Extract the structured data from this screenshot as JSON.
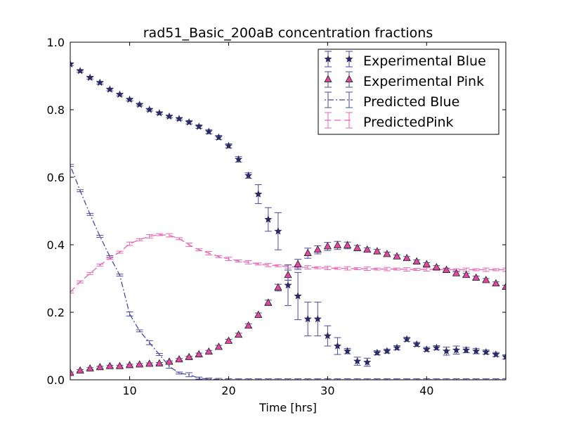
{
  "colors": {
    "blue": "#2b2a63",
    "blue_err": "#4b4aa3",
    "pink": "#e0479e",
    "pink_line": "#e866b4"
  },
  "chart_data": {
    "type": "line",
    "title": "rad51_Basic_200aB concentration fractions",
    "xlabel": "Time [hrs]",
    "ylabel": "",
    "xlim": [
      4,
      48
    ],
    "ylim": [
      0,
      1.0
    ],
    "xticks": [
      10,
      20,
      30,
      40
    ],
    "yticks": [
      0.0,
      0.2,
      0.4,
      0.6,
      0.8,
      1.0
    ],
    "xtick_labels": [
      "10",
      "20",
      "30",
      "40"
    ],
    "ytick_labels": [
      "0.0",
      "0.2",
      "0.4",
      "0.6",
      "0.8",
      "1.0"
    ],
    "grid": false,
    "legend_position": "top-right",
    "series": [
      {
        "name": "Experimental Blue",
        "style": "star-errorbar",
        "x": [
          4,
          5,
          6,
          7,
          8,
          9,
          10,
          11,
          12,
          13,
          14,
          15,
          16,
          17,
          18,
          19,
          20,
          21,
          22,
          23,
          24,
          25,
          26,
          27,
          28,
          29,
          30,
          31,
          32,
          33,
          34,
          35,
          36,
          37,
          38,
          39,
          40,
          41,
          42,
          43,
          44,
          45,
          46,
          47,
          48
        ],
        "y": [
          0.935,
          0.915,
          0.895,
          0.88,
          0.86,
          0.845,
          0.83,
          0.815,
          0.8,
          0.79,
          0.78,
          0.773,
          0.763,
          0.75,
          0.735,
          0.718,
          0.693,
          0.653,
          0.605,
          0.55,
          0.475,
          0.44,
          0.28,
          0.248,
          0.18,
          0.18,
          0.13,
          0.1,
          0.085,
          0.055,
          0.052,
          0.08,
          0.085,
          0.095,
          0.12,
          0.105,
          0.09,
          0.095,
          0.085,
          0.088,
          0.088,
          0.085,
          0.082,
          0.075,
          0.068
        ],
        "err": [
          0.004,
          0.004,
          0.004,
          0.004,
          0.004,
          0.004,
          0.004,
          0.004,
          0.004,
          0.004,
          0.004,
          0.004,
          0.005,
          0.005,
          0.006,
          0.006,
          0.006,
          0.008,
          0.008,
          0.028,
          0.035,
          0.055,
          0.06,
          0.07,
          0.05,
          0.05,
          0.03,
          0.025,
          0.008,
          0.012,
          0.012,
          0.006,
          0.006,
          0.006,
          0.006,
          0.006,
          0.006,
          0.006,
          0.012,
          0.012,
          0.008,
          0.008,
          0.006,
          0.006,
          0.006
        ]
      },
      {
        "name": "Experimental Pink",
        "style": "triangle-errorbar",
        "x": [
          4,
          5,
          6,
          7,
          8,
          9,
          10,
          11,
          12,
          13,
          14,
          15,
          16,
          17,
          18,
          19,
          20,
          21,
          22,
          23,
          24,
          25,
          26,
          27,
          28,
          29,
          30,
          31,
          32,
          33,
          34,
          35,
          36,
          37,
          38,
          39,
          40,
          41,
          42,
          43,
          44,
          45,
          46,
          47,
          48
        ],
        "y": [
          0.02,
          0.027,
          0.033,
          0.037,
          0.04,
          0.04,
          0.043,
          0.045,
          0.047,
          0.048,
          0.053,
          0.06,
          0.067,
          0.075,
          0.083,
          0.097,
          0.115,
          0.133,
          0.16,
          0.192,
          0.228,
          0.273,
          0.31,
          0.342,
          0.375,
          0.385,
          0.395,
          0.398,
          0.398,
          0.39,
          0.385,
          0.38,
          0.372,
          0.365,
          0.36,
          0.35,
          0.342,
          0.333,
          0.325,
          0.315,
          0.31,
          0.302,
          0.295,
          0.285,
          0.275
        ],
        "err": [
          0.003,
          0.003,
          0.003,
          0.003,
          0.003,
          0.003,
          0.003,
          0.003,
          0.003,
          0.003,
          0.003,
          0.003,
          0.003,
          0.004,
          0.004,
          0.005,
          0.005,
          0.005,
          0.006,
          0.006,
          0.008,
          0.01,
          0.015,
          0.015,
          0.015,
          0.012,
          0.012,
          0.012,
          0.01,
          0.008,
          0.006,
          0.006,
          0.006,
          0.005,
          0.005,
          0.005,
          0.005,
          0.005,
          0.005,
          0.005,
          0.005,
          0.005,
          0.005,
          0.005,
          0.005
        ]
      },
      {
        "name": "Predicted Blue",
        "style": "dashdot-errorbar",
        "x": [
          4,
          5,
          6,
          7,
          8,
          9,
          10,
          11,
          12,
          13,
          14,
          15,
          16,
          17,
          18,
          19,
          20,
          21,
          22,
          23,
          24,
          25,
          26,
          27,
          28,
          29,
          30,
          31,
          32,
          33,
          34,
          35,
          36,
          37,
          38,
          39,
          40,
          41,
          42,
          43,
          44,
          45,
          46,
          47,
          48
        ],
        "y": [
          0.635,
          0.56,
          0.49,
          0.425,
          0.365,
          0.31,
          0.195,
          0.145,
          0.11,
          0.075,
          0.04,
          0.02,
          0.015,
          0.005,
          0.002,
          0.001,
          0.0,
          0.0,
          0.0,
          0.0,
          0.0,
          0.0,
          0.0,
          0.0,
          0.0,
          0.0,
          0.0,
          0.0,
          0.0,
          0.0,
          0.0,
          0.0,
          0.0,
          0.0,
          0.0,
          0.0,
          0.0,
          0.0,
          0.0,
          0.0,
          0.0,
          0.0,
          0.0,
          0.0,
          0.0
        ],
        "err": [
          0.003,
          0.003,
          0.003,
          0.003,
          0.003,
          0.003,
          0.006,
          0.003,
          0.006,
          0.003,
          0.006,
          0.003,
          0.006,
          0.003,
          0.003,
          0.003,
          0.003,
          0.003,
          0.003,
          0.003,
          0.003,
          0.003,
          0.003,
          0.003,
          0.003,
          0.003,
          0.003,
          0.003,
          0.003,
          0.003,
          0.003,
          0.003,
          0.003,
          0.003,
          0.003,
          0.003,
          0.003,
          0.003,
          0.003,
          0.003,
          0.003,
          0.003,
          0.003,
          0.003,
          0.003
        ]
      },
      {
        "name": "PredictedPink",
        "style": "dashed-errorbar",
        "x": [
          4,
          5,
          6,
          7,
          8,
          9,
          10,
          11,
          12,
          13,
          14,
          15,
          16,
          17,
          18,
          19,
          20,
          21,
          22,
          23,
          24,
          25,
          26,
          27,
          28,
          29,
          30,
          31,
          32,
          33,
          34,
          35,
          36,
          37,
          38,
          39,
          40,
          41,
          42,
          43,
          44,
          45,
          46,
          47,
          48
        ],
        "y": [
          0.26,
          0.29,
          0.315,
          0.34,
          0.36,
          0.378,
          0.403,
          0.415,
          0.425,
          0.43,
          0.428,
          0.418,
          0.4,
          0.385,
          0.375,
          0.365,
          0.358,
          0.352,
          0.348,
          0.343,
          0.34,
          0.338,
          0.336,
          0.334,
          0.333,
          0.332,
          0.331,
          0.33,
          0.33,
          0.329,
          0.329,
          0.328,
          0.328,
          0.328,
          0.327,
          0.327,
          0.327,
          0.327,
          0.326,
          0.326,
          0.326,
          0.326,
          0.326,
          0.326,
          0.326
        ],
        "err": [
          0.003,
          0.003,
          0.003,
          0.003,
          0.003,
          0.003,
          0.005,
          0.003,
          0.005,
          0.003,
          0.005,
          0.003,
          0.005,
          0.003,
          0.005,
          0.003,
          0.005,
          0.003,
          0.005,
          0.003,
          0.005,
          0.003,
          0.005,
          0.003,
          0.005,
          0.003,
          0.005,
          0.003,
          0.005,
          0.003,
          0.005,
          0.003,
          0.005,
          0.003,
          0.005,
          0.003,
          0.005,
          0.003,
          0.005,
          0.003,
          0.005,
          0.003,
          0.005,
          0.003,
          0.005
        ]
      }
    ]
  }
}
